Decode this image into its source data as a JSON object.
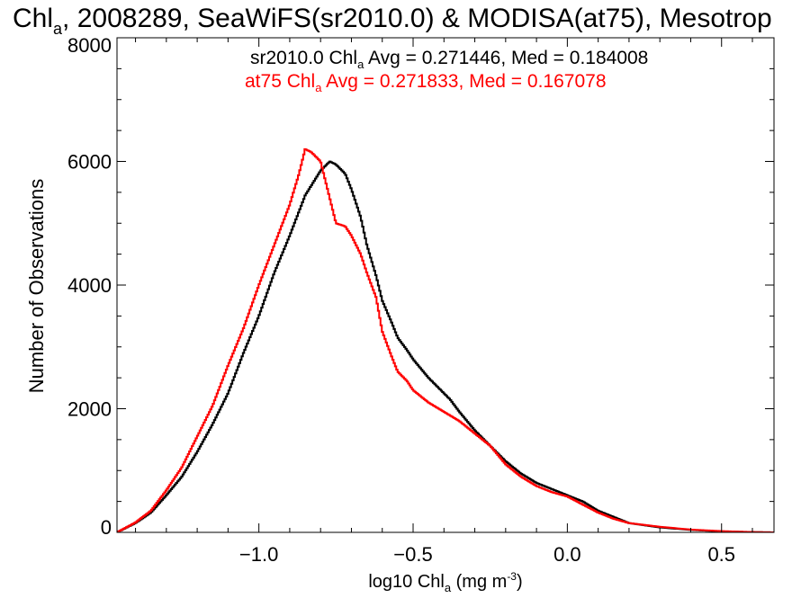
{
  "chart_data": {
    "type": "line",
    "title": {
      "pre": "Chl",
      "sub": "a",
      "post": ", 2008289, SeaWiFS(sr2010.0) & MODISA(at75), Mesotrop"
    },
    "xlabel": {
      "pre": "log10 Chl",
      "sub": "a",
      "post": " (mg m",
      "sup": "-3",
      "end": ")"
    },
    "ylabel": "Number of Observations",
    "xlim": [
      -1.46,
      0.67
    ],
    "ylim": [
      0,
      8000
    ],
    "xticks": [
      -1.0,
      -0.5,
      0.0,
      0.5
    ],
    "xtick_labels": [
      "−1.0",
      "−0.5",
      "0.0",
      "0.5"
    ],
    "yticks": [
      0,
      2000,
      4000,
      6000,
      8000
    ],
    "ytick_labels": [
      "0",
      "2000",
      "4000",
      "6000",
      "8000"
    ],
    "annotations": [
      {
        "pre": "sr2010.0 Chl",
        "sub": "a",
        "post": " Avg = 0.271446, Med = 0.184008",
        "color": "#000000"
      },
      {
        "pre": "at75 Chl",
        "sub": "a",
        "post": " Avg = 0.271833, Med = 0.167078",
        "color": "#ff0000"
      }
    ],
    "series": [
      {
        "color": "#000000",
        "x": [
          -1.46,
          -1.4,
          -1.35,
          -1.3,
          -1.25,
          -1.2,
          -1.15,
          -1.1,
          -1.05,
          -1.0,
          -0.95,
          -0.9,
          -0.85,
          -0.8,
          -0.77,
          -0.75,
          -0.72,
          -0.7,
          -0.67,
          -0.65,
          -0.62,
          -0.6,
          -0.57,
          -0.55,
          -0.52,
          -0.5,
          -0.45,
          -0.4,
          -0.38,
          -0.35,
          -0.3,
          -0.25,
          -0.2,
          -0.15,
          -0.1,
          -0.05,
          0.0,
          0.05,
          0.1,
          0.15,
          0.2,
          0.3,
          0.4,
          0.5,
          0.6,
          0.67
        ],
        "y": [
          0,
          150,
          320,
          600,
          900,
          1300,
          1750,
          2250,
          2900,
          3500,
          4200,
          4800,
          5450,
          5850,
          6000,
          5950,
          5800,
          5550,
          5100,
          4650,
          4150,
          3750,
          3400,
          3150,
          2950,
          2800,
          2500,
          2250,
          2150,
          1950,
          1650,
          1400,
          1150,
          950,
          800,
          700,
          600,
          500,
          350,
          250,
          150,
          80,
          40,
          15,
          5,
          0
        ]
      },
      {
        "color": "#ff0000",
        "x": [
          -1.46,
          -1.4,
          -1.35,
          -1.3,
          -1.25,
          -1.2,
          -1.15,
          -1.1,
          -1.05,
          -1.0,
          -0.95,
          -0.9,
          -0.87,
          -0.85,
          -0.83,
          -0.8,
          -0.78,
          -0.75,
          -0.72,
          -0.7,
          -0.67,
          -0.65,
          -0.62,
          -0.6,
          -0.57,
          -0.55,
          -0.52,
          -0.5,
          -0.45,
          -0.4,
          -0.35,
          -0.3,
          -0.25,
          -0.2,
          -0.15,
          -0.1,
          -0.05,
          0.0,
          0.05,
          0.1,
          0.15,
          0.2,
          0.3,
          0.4,
          0.5,
          0.6,
          0.67
        ],
        "y": [
          0,
          160,
          350,
          680,
          1050,
          1550,
          2050,
          2700,
          3300,
          4000,
          4650,
          5300,
          5800,
          6200,
          6150,
          6000,
          5600,
          5000,
          4950,
          4800,
          4500,
          4200,
          3800,
          3250,
          2850,
          2600,
          2450,
          2300,
          2100,
          1950,
          1800,
          1600,
          1400,
          1100,
          900,
          750,
          650,
          580,
          450,
          320,
          220,
          150,
          90,
          45,
          20,
          5,
          0
        ]
      }
    ]
  }
}
